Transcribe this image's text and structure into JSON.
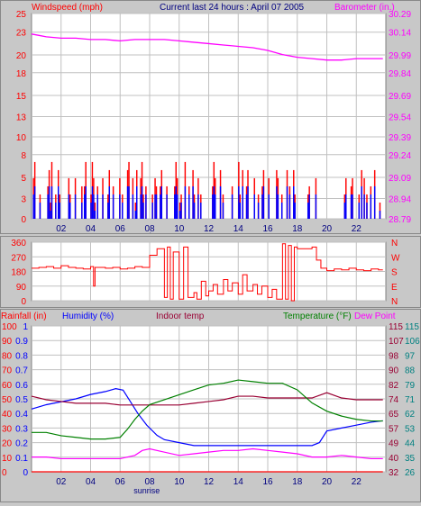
{
  "header": {
    "left_label": "Windspeed (mph)",
    "title": "Current last 24 hours : April 07 2005",
    "right_label": "Barometer (in.)"
  },
  "colors": {
    "plot_bg": "#ffffff",
    "grid": "#c0c0c0",
    "red": "#ff0000",
    "blue": "#0000ff",
    "magenta": "#ff00ff",
    "green": "#008000",
    "maroon": "#990033",
    "navy": "#000080",
    "teal": "#008080"
  },
  "chart_data": [
    {
      "type": "bar",
      "name": "wind",
      "x_ticks": [
        "02",
        "04",
        "06",
        "08",
        "10",
        "12",
        "14",
        "16",
        "18",
        "20",
        "22"
      ],
      "x_tick_hours": [
        2,
        4,
        6,
        8,
        10,
        12,
        14,
        16,
        18,
        20,
        22
      ],
      "x_range": [
        0,
        24
      ],
      "left_ticks": [
        "25",
        "23",
        "20",
        "18",
        "15",
        "13",
        "10",
        "8",
        "5",
        "3",
        "0"
      ],
      "left_ticks_values": [
        25.3,
        23,
        20.2,
        18,
        15.2,
        12.6,
        10.1,
        7.9,
        5.1,
        2.5,
        0
      ],
      "right_ticks": [
        "30.29",
        "30.14",
        "29.99",
        "29.84",
        "29.69",
        "29.54",
        "29.39",
        "29.24",
        "29.09",
        "28.94",
        "28.79"
      ],
      "ylim": [
        0,
        25.3
      ],
      "y2lim": [
        28.79,
        30.29
      ],
      "sunrise_label": "sunrise",
      "sunrise_hour": 7.8,
      "gust_mph": [
        0,
        5,
        7,
        0,
        0,
        0,
        3,
        0,
        0,
        0,
        0,
        0,
        4,
        6,
        2,
        7,
        0,
        0,
        3,
        0,
        6,
        3,
        0,
        0,
        0,
        0,
        0,
        0,
        5,
        3,
        0,
        0,
        0,
        5,
        0,
        0,
        0,
        0,
        4,
        0,
        4,
        7,
        0,
        0,
        0,
        3,
        7,
        5,
        2,
        0,
        4,
        0,
        0,
        0,
        5,
        0,
        0,
        0,
        3,
        6,
        0,
        0,
        4,
        0,
        0,
        0,
        0,
        5,
        0,
        3,
        0,
        0,
        0,
        6,
        7,
        0,
        0,
        5,
        0,
        2,
        6,
        0,
        0,
        5,
        7,
        3,
        0,
        4,
        0,
        0,
        0,
        0,
        3,
        0,
        5,
        4,
        0,
        0,
        4,
        6,
        0,
        0,
        0,
        4,
        0,
        0,
        0,
        0,
        0,
        4,
        7,
        5,
        0,
        2,
        3,
        0,
        0,
        7,
        0,
        0,
        4,
        0,
        0,
        6,
        3,
        0,
        0,
        5,
        0,
        3,
        0,
        0,
        0,
        0,
        0,
        0,
        0,
        0,
        4,
        7,
        5,
        0,
        0,
        0,
        6,
        0,
        3,
        0,
        0,
        0,
        0,
        0,
        0,
        4,
        0,
        0,
        0,
        0,
        7,
        3,
        0,
        6,
        0,
        0,
        4,
        6,
        0,
        0,
        0,
        0,
        5,
        0,
        0,
        3,
        0,
        0,
        4,
        6,
        0,
        0,
        0,
        5,
        0,
        0,
        0,
        0,
        0,
        6,
        5,
        0,
        0,
        3,
        0,
        0,
        0,
        6,
        0,
        4,
        0,
        0,
        6,
        3,
        0,
        0,
        0,
        0,
        0,
        0,
        0,
        0,
        0,
        3,
        4,
        0,
        0,
        0,
        0,
        5,
        0,
        0,
        0,
        0,
        0,
        0,
        0,
        0,
        0,
        0,
        0,
        0,
        0,
        0,
        0,
        0,
        0,
        0,
        0,
        0,
        0,
        3,
        5,
        0,
        0,
        0,
        4,
        5,
        0,
        0,
        0,
        0,
        3,
        0,
        6,
        0,
        5,
        0,
        3,
        0,
        0,
        4,
        0,
        0,
        6,
        0,
        0,
        0,
        2,
        0,
        0,
        0,
        0
      ],
      "avg_mph": [
        0,
        3,
        4,
        0,
        0,
        0,
        2,
        0,
        0,
        0,
        0,
        0,
        3,
        4,
        1,
        4,
        0,
        0,
        2,
        0,
        4,
        2,
        0,
        0,
        0,
        0,
        0,
        0,
        3,
        2,
        0,
        0,
        0,
        3,
        0,
        0,
        0,
        0,
        2,
        0,
        3,
        4,
        0,
        0,
        0,
        2,
        4,
        3,
        1,
        0,
        3,
        0,
        0,
        0,
        3,
        0,
        0,
        0,
        2,
        4,
        0,
        0,
        3,
        0,
        0,
        0,
        0,
        3,
        0,
        2,
        0,
        0,
        0,
        4,
        4,
        0,
        0,
        3,
        0,
        1,
        4,
        0,
        0,
        3,
        4,
        2,
        0,
        3,
        0,
        0,
        0,
        0,
        2,
        0,
        3,
        3,
        0,
        0,
        3,
        4,
        0,
        0,
        0,
        3,
        0,
        0,
        0,
        0,
        0,
        3,
        4,
        3,
        0,
        1,
        2,
        0,
        0,
        4,
        0,
        0,
        3,
        0,
        0,
        4,
        2,
        0,
        0,
        3,
        0,
        2,
        0,
        0,
        0,
        0,
        0,
        0,
        0,
        0,
        3,
        4,
        3,
        0,
        0,
        0,
        4,
        0,
        2,
        0,
        0,
        0,
        0,
        0,
        0,
        3,
        0,
        0,
        0,
        0,
        4,
        2,
        0,
        4,
        0,
        0,
        3,
        4,
        0,
        0,
        0,
        0,
        3,
        0,
        0,
        2,
        0,
        0,
        3,
        4,
        0,
        0,
        0,
        3,
        0,
        0,
        0,
        0,
        0,
        4,
        3,
        0,
        0,
        2,
        0,
        0,
        0,
        4,
        0,
        3,
        0,
        0,
        4,
        2,
        0,
        0,
        0,
        0,
        0,
        0,
        0,
        0,
        0,
        2,
        3,
        0,
        0,
        0,
        0,
        3,
        0,
        0,
        0,
        0,
        0,
        0,
        0,
        0,
        0,
        0,
        0,
        0,
        0,
        0,
        0,
        0,
        0,
        0,
        0,
        0,
        0,
        2,
        3,
        0,
        0,
        0,
        3,
        3,
        0,
        0,
        0,
        0,
        2,
        0,
        4,
        0,
        3,
        0,
        2,
        0,
        0,
        3,
        0,
        0,
        4,
        0,
        0,
        0,
        1,
        0,
        0,
        0,
        0
      ],
      "barometer_in": [
        [
          0,
          30.14
        ],
        [
          0.5,
          30.13
        ],
        [
          1,
          30.12
        ],
        [
          2,
          30.11
        ],
        [
          3,
          30.11
        ],
        [
          4,
          30.1
        ],
        [
          5,
          30.1
        ],
        [
          6,
          30.09
        ],
        [
          7,
          30.1
        ],
        [
          8,
          30.1
        ],
        [
          9,
          30.1
        ],
        [
          10,
          30.09
        ],
        [
          11,
          30.08
        ],
        [
          12,
          30.07
        ],
        [
          13,
          30.06
        ],
        [
          14,
          30.05
        ],
        [
          15,
          30.04
        ],
        [
          16,
          30.02
        ],
        [
          17,
          29.99
        ],
        [
          18,
          29.97
        ],
        [
          19,
          29.96
        ],
        [
          20,
          29.95
        ],
        [
          21,
          29.95
        ],
        [
          22,
          29.96
        ],
        [
          23,
          29.96
        ],
        [
          23.8,
          29.96
        ]
      ]
    },
    {
      "type": "line",
      "name": "direction",
      "left_ticks": [
        "360",
        "270",
        "180",
        "90",
        "0"
      ],
      "left_ticks_values": [
        360,
        270,
        180,
        90,
        0
      ],
      "right_ticks": [
        "N",
        "W",
        "S",
        "E",
        "N"
      ],
      "ylim": [
        0,
        360
      ],
      "direction_deg": [
        [
          0,
          200
        ],
        [
          0.5,
          205
        ],
        [
          1,
          210
        ],
        [
          1.5,
          200
        ],
        [
          2,
          215
        ],
        [
          2.5,
          205
        ],
        [
          3,
          200
        ],
        [
          3.5,
          195
        ],
        [
          4,
          210
        ],
        [
          4.2,
          90
        ],
        [
          4.3,
          205
        ],
        [
          5,
          200
        ],
        [
          5.5,
          205
        ],
        [
          6,
          195
        ],
        [
          6.5,
          200
        ],
        [
          7,
          210
        ],
        [
          7.5,
          205
        ],
        [
          8,
          280
        ],
        [
          8.5,
          320
        ],
        [
          9,
          20
        ],
        [
          9.2,
          330
        ],
        [
          9.4,
          10
        ],
        [
          9.6,
          300
        ],
        [
          10,
          10
        ],
        [
          10.3,
          330
        ],
        [
          10.6,
          20
        ],
        [
          11,
          50
        ],
        [
          11.2,
          10
        ],
        [
          11.5,
          120
        ],
        [
          11.8,
          30
        ],
        [
          12,
          60
        ],
        [
          12.3,
          100
        ],
        [
          12.6,
          40
        ],
        [
          13,
          130
        ],
        [
          13.3,
          60
        ],
        [
          13.6,
          110
        ],
        [
          14,
          40
        ],
        [
          14.3,
          160
        ],
        [
          14.6,
          60
        ],
        [
          15,
          100
        ],
        [
          15.3,
          40
        ],
        [
          15.6,
          90
        ],
        [
          16,
          20
        ],
        [
          16.3,
          70
        ],
        [
          16.6,
          10
        ],
        [
          17,
          350
        ],
        [
          17.2,
          10
        ],
        [
          17.4,
          340
        ],
        [
          17.6,
          0
        ],
        [
          17.8,
          330
        ],
        [
          18,
          320
        ],
        [
          19,
          330
        ],
        [
          19.3,
          250
        ],
        [
          19.6,
          200
        ],
        [
          20,
          185
        ],
        [
          20.5,
          195
        ],
        [
          21,
          190
        ],
        [
          21.5,
          200
        ],
        [
          22,
          190
        ],
        [
          22.5,
          185
        ],
        [
          23,
          195
        ],
        [
          23.5,
          190
        ],
        [
          23.8,
          190
        ]
      ]
    },
    {
      "type": "line",
      "name": "climate",
      "labels": {
        "rainfall": "Rainfall (in)",
        "humidity": "Humidity (%)",
        "indoor": "Indoor temp",
        "temperature": "Temperature (°F)",
        "dewpoint": "Dew Point"
      },
      "x_ticks": [
        "02",
        "04",
        "06",
        "08",
        "10",
        "12",
        "14",
        "16",
        "18",
        "20",
        "22"
      ],
      "sunrise_label": "sunrise",
      "rain_ticks": [
        "100",
        "90",
        "80",
        "70",
        "60",
        "50",
        "40",
        "30",
        "20",
        "10",
        "0"
      ],
      "hum_ticks": [
        "1",
        "0.9",
        "0.8",
        "0.7",
        "0.6",
        "0.5",
        "0.4",
        "0.3",
        "0.2",
        "0.1",
        "0"
      ],
      "r1_ticks": [
        "115",
        "107",
        "98",
        "90",
        "82",
        "74",
        "65",
        "57",
        "49",
        "40",
        "32"
      ],
      "r2_ticks": [
        "115",
        "106",
        "97",
        "88",
        "79",
        "71",
        "62",
        "53",
        "44",
        "35",
        "26"
      ],
      "ylim_pct": [
        0,
        100
      ],
      "humidity_pct": [
        [
          0,
          43
        ],
        [
          1,
          46
        ],
        [
          2,
          48
        ],
        [
          3,
          50
        ],
        [
          4,
          53
        ],
        [
          5,
          55
        ],
        [
          5.7,
          57
        ],
        [
          6.2,
          56
        ],
        [
          6.7,
          48
        ],
        [
          7.2,
          40
        ],
        [
          7.8,
          32
        ],
        [
          8.5,
          25
        ],
        [
          9,
          22
        ],
        [
          10,
          20
        ],
        [
          11,
          18
        ],
        [
          12,
          18
        ],
        [
          13,
          18
        ],
        [
          14,
          18
        ],
        [
          15,
          18
        ],
        [
          16,
          18
        ],
        [
          17,
          18
        ],
        [
          18,
          18
        ],
        [
          19,
          18
        ],
        [
          19.5,
          20
        ],
        [
          20,
          28
        ],
        [
          21,
          30
        ],
        [
          22,
          32
        ],
        [
          23,
          34
        ],
        [
          23.8,
          35
        ]
      ],
      "indoor_f": [
        [
          0,
          75
        ],
        [
          1,
          73
        ],
        [
          2,
          72
        ],
        [
          3,
          71
        ],
        [
          4,
          71
        ],
        [
          5,
          71
        ],
        [
          6,
          70
        ],
        [
          7,
          70
        ],
        [
          8,
          70
        ],
        [
          9,
          70
        ],
        [
          10,
          70
        ],
        [
          11,
          71
        ],
        [
          12,
          72
        ],
        [
          13,
          73
        ],
        [
          14,
          75
        ],
        [
          15,
          75
        ],
        [
          16,
          74
        ],
        [
          17,
          74
        ],
        [
          18,
          74
        ],
        [
          19,
          74
        ],
        [
          20,
          77
        ],
        [
          21,
          74
        ],
        [
          22,
          73
        ],
        [
          23,
          73
        ],
        [
          23.8,
          73
        ]
      ],
      "outdoor_f": [
        [
          0,
          50
        ],
        [
          1,
          50
        ],
        [
          2,
          48
        ],
        [
          3,
          47
        ],
        [
          4,
          46
        ],
        [
          5,
          46
        ],
        [
          6,
          47
        ],
        [
          6.5,
          52
        ],
        [
          7,
          58
        ],
        [
          7.5,
          63
        ],
        [
          8,
          67
        ],
        [
          9,
          70
        ],
        [
          10,
          73
        ],
        [
          11,
          76
        ],
        [
          12,
          79
        ],
        [
          13,
          80
        ],
        [
          14,
          82
        ],
        [
          15,
          81
        ],
        [
          16,
          80
        ],
        [
          17,
          80
        ],
        [
          18,
          76
        ],
        [
          19,
          68
        ],
        [
          20,
          63
        ],
        [
          21,
          60
        ],
        [
          22,
          58
        ],
        [
          23,
          57
        ],
        [
          23.8,
          57
        ]
      ],
      "dewpoint_f": [
        [
          0,
          35
        ],
        [
          1,
          35
        ],
        [
          2,
          34
        ],
        [
          3,
          34
        ],
        [
          4,
          34
        ],
        [
          5,
          34
        ],
        [
          6,
          34
        ],
        [
          7,
          36
        ],
        [
          7.5,
          39
        ],
        [
          8,
          40
        ],
        [
          9,
          38
        ],
        [
          10,
          36
        ],
        [
          11,
          37
        ],
        [
          12,
          38
        ],
        [
          13,
          39
        ],
        [
          14,
          39
        ],
        [
          15,
          40
        ],
        [
          16,
          39
        ],
        [
          17,
          38
        ],
        [
          18,
          37
        ],
        [
          19,
          35
        ],
        [
          20,
          35
        ],
        [
          21,
          36
        ],
        [
          22,
          35
        ],
        [
          23,
          34
        ],
        [
          23.8,
          34
        ]
      ],
      "rain_in": [
        [
          0,
          0
        ],
        [
          23.8,
          0
        ]
      ]
    }
  ]
}
